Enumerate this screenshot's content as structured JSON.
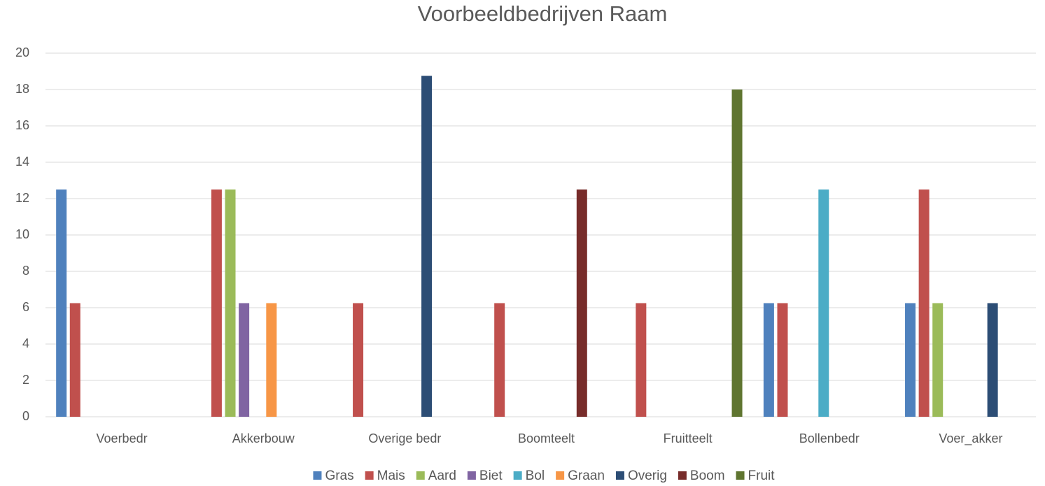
{
  "chart_data": {
    "type": "bar",
    "title": "Voorbeeldbedrijven Raam",
    "categories": [
      "Voerbedr",
      "Akkerbouw",
      "Overige bedr",
      "Boomteelt",
      "Fruitteelt",
      "Bollenbedr",
      "Voer_akker"
    ],
    "series": [
      {
        "name": "Gras",
        "color": "#4f81bd",
        "values": [
          12.5,
          0,
          0,
          0,
          0,
          6.25,
          6.25
        ]
      },
      {
        "name": "Mais",
        "color": "#c0504d",
        "values": [
          6.25,
          12.5,
          6.25,
          6.25,
          6.25,
          6.25,
          12.5
        ]
      },
      {
        "name": "Aard",
        "color": "#9bbb59",
        "values": [
          0,
          12.5,
          0,
          0,
          0,
          0,
          6.25
        ]
      },
      {
        "name": "Biet",
        "color": "#8064a2",
        "values": [
          0,
          6.25,
          0,
          0,
          0,
          0,
          0
        ]
      },
      {
        "name": "Bol",
        "color": "#4bacc6",
        "values": [
          0,
          0,
          0,
          0,
          0,
          12.5,
          0
        ]
      },
      {
        "name": "Graan",
        "color": "#f79646",
        "values": [
          0,
          6.25,
          0,
          0,
          0,
          0,
          0
        ]
      },
      {
        "name": "Overig",
        "color": "#2c4d75",
        "values": [
          0,
          0,
          18.75,
          0,
          0,
          0,
          6.25
        ]
      },
      {
        "name": "Boom",
        "color": "#772c2a",
        "values": [
          0,
          0,
          0,
          12.5,
          0,
          0,
          0
        ]
      },
      {
        "name": "Fruit",
        "color": "#5f7530",
        "values": [
          0,
          0,
          0,
          0,
          18,
          0,
          0
        ]
      }
    ],
    "ylim": [
      0,
      20
    ],
    "yticks": [
      0,
      2,
      4,
      6,
      8,
      10,
      12,
      14,
      16,
      18,
      20
    ],
    "grid": true,
    "legend": "bottom"
  }
}
